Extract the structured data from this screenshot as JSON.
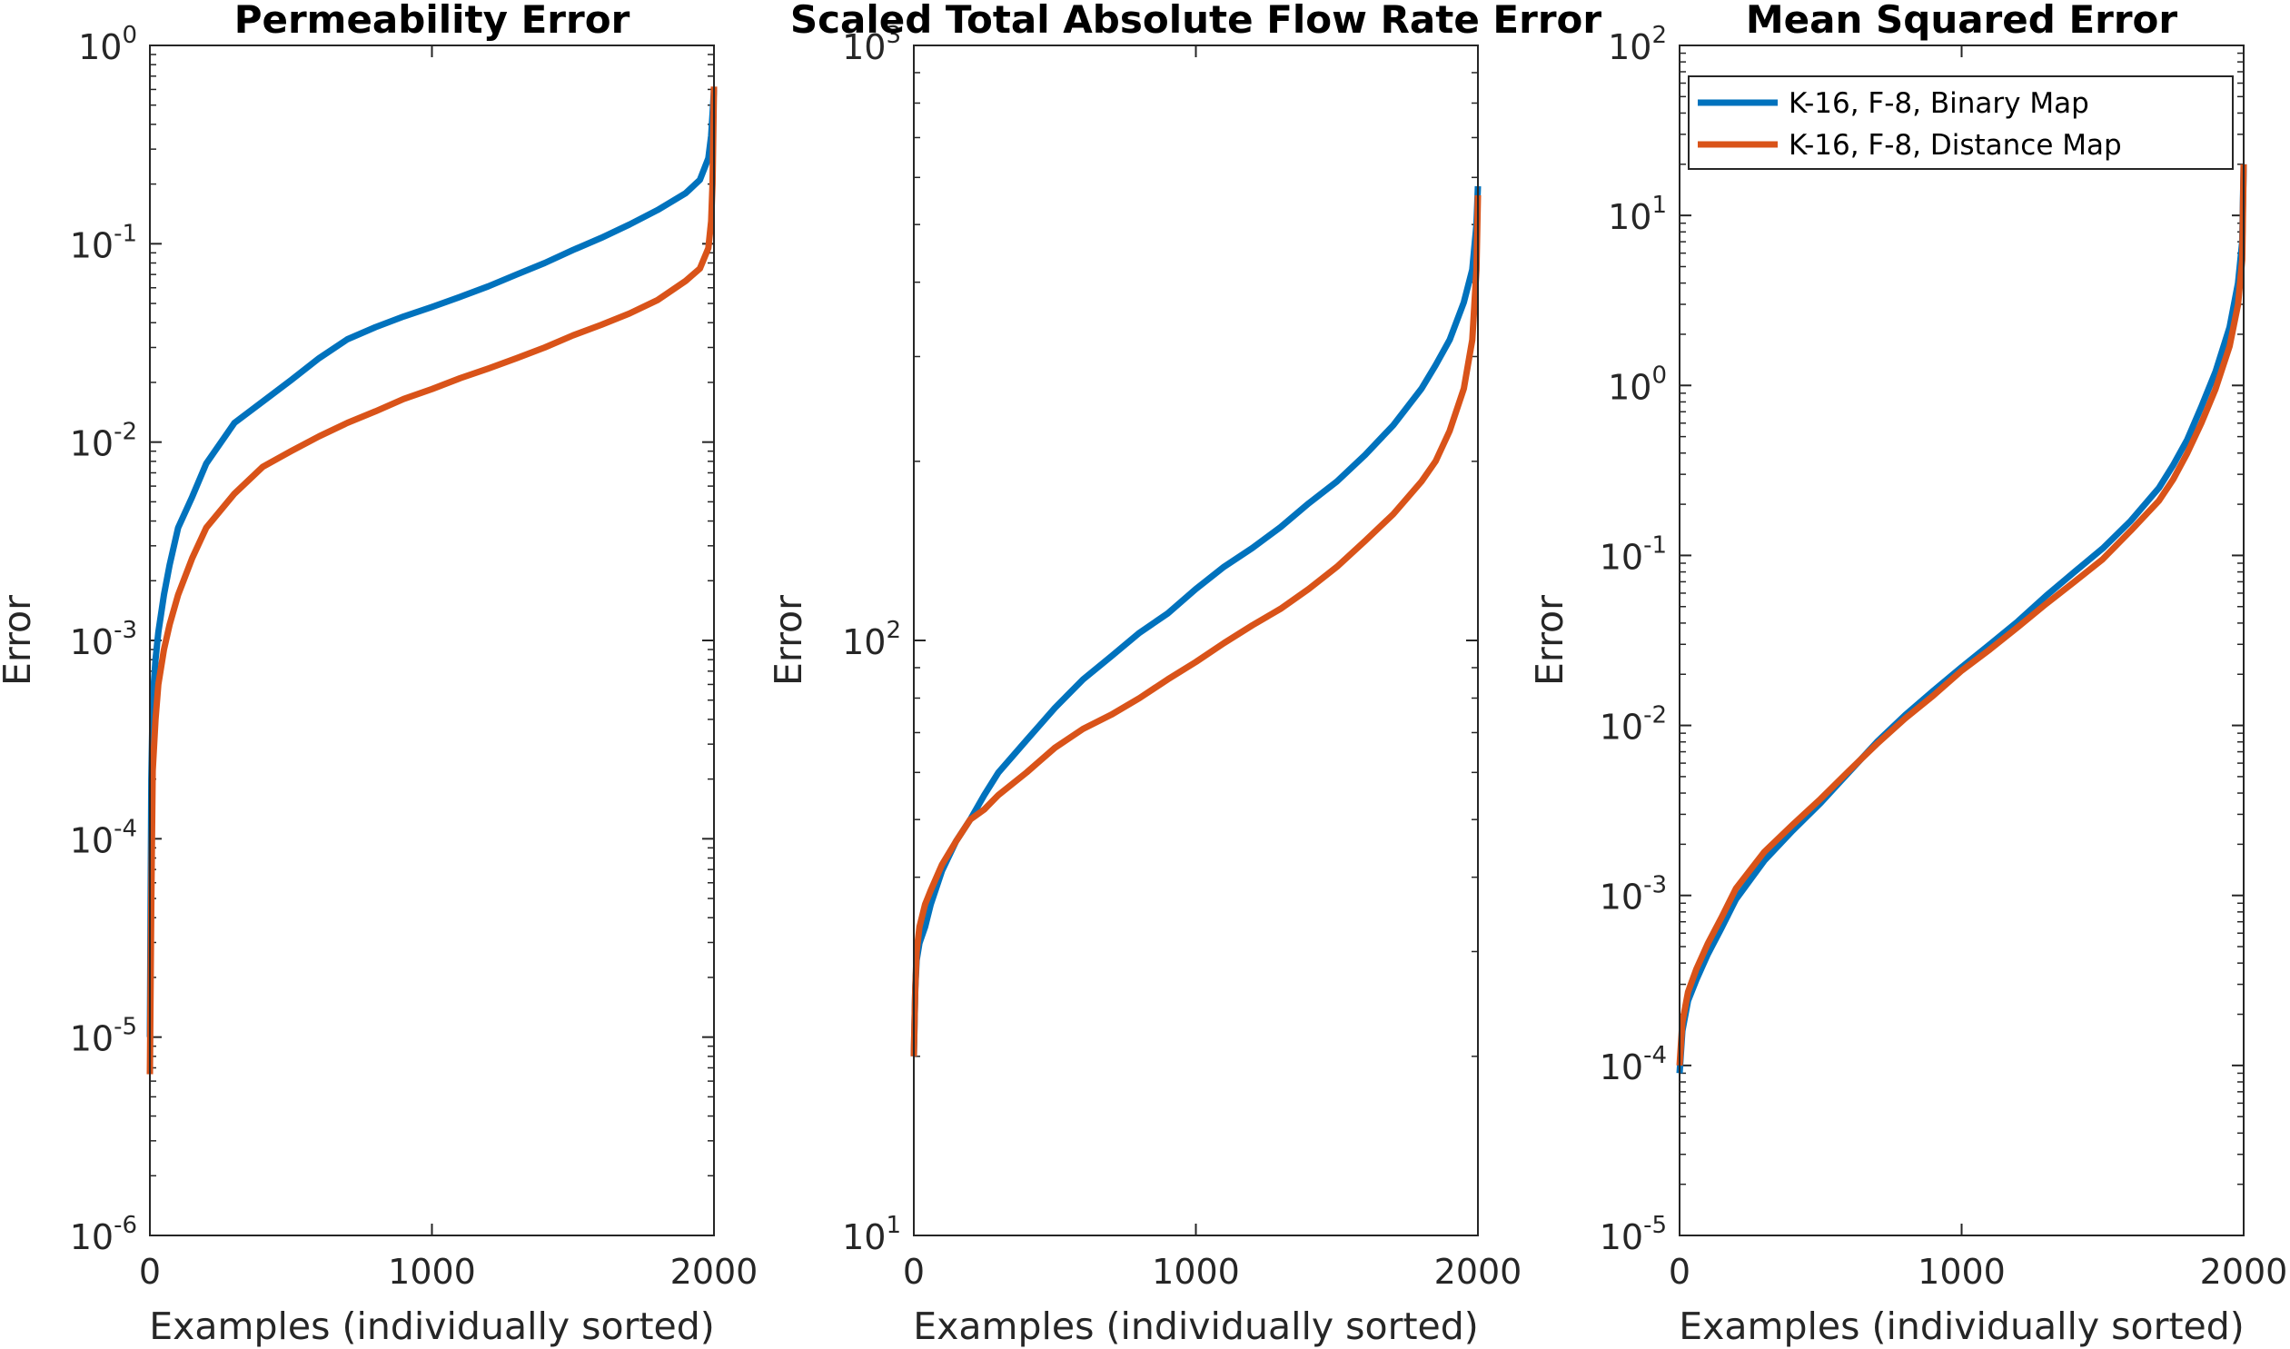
{
  "chart_data": [
    {
      "type": "line",
      "title": "Permeability Error",
      "xlabel": "Examples (individually sorted)",
      "ylabel": "Error",
      "yscale": "log",
      "xlim": [
        0,
        2000
      ],
      "ylim": [
        1e-06,
        1
      ],
      "xticks": [
        "0",
        "1000",
        "2000"
      ],
      "yticks": [
        {
          "base": "10",
          "exp": "-6"
        },
        {
          "base": "10",
          "exp": "-5"
        },
        {
          "base": "10",
          "exp": "-4"
        },
        {
          "base": "10",
          "exp": "-3"
        },
        {
          "base": "10",
          "exp": "-2"
        },
        {
          "base": "10",
          "exp": "-1"
        },
        {
          "base": "10",
          "exp": "0"
        }
      ],
      "series": [
        {
          "x": [
            0,
            5,
            10,
            20,
            30,
            50,
            70,
            100,
            150,
            200,
            300,
            400,
            500,
            600,
            700,
            800,
            900,
            1000,
            1100,
            1200,
            1300,
            1400,
            1500,
            1600,
            1700,
            1800,
            1900,
            1950,
            1980,
            1990,
            1995,
            2000
          ],
          "y": [
            1e-05,
            0.0002,
            0.0005,
            0.0008,
            0.0011,
            0.0017,
            0.0024,
            0.0037,
            0.0053,
            0.0078,
            0.0125,
            0.016,
            0.0205,
            0.0265,
            0.033,
            0.038,
            0.043,
            0.048,
            0.054,
            0.061,
            0.07,
            0.08,
            0.093,
            0.107,
            0.125,
            0.148,
            0.18,
            0.21,
            0.27,
            0.35,
            0.45,
            0.6
          ]
        },
        {
          "x": [
            0,
            5,
            10,
            20,
            30,
            50,
            70,
            100,
            150,
            200,
            300,
            400,
            500,
            600,
            700,
            800,
            900,
            1000,
            1100,
            1200,
            1300,
            1400,
            1500,
            1600,
            1700,
            1800,
            1900,
            1950,
            1980,
            1990,
            1995,
            2000
          ],
          "y": [
            6.5e-06,
            5e-05,
            0.00022,
            0.0004,
            0.0006,
            0.0009,
            0.0012,
            0.0017,
            0.0026,
            0.0037,
            0.0055,
            0.0075,
            0.009,
            0.0107,
            0.0125,
            0.0143,
            0.0165,
            0.0185,
            0.021,
            0.0235,
            0.0265,
            0.03,
            0.0345,
            0.039,
            0.0445,
            0.052,
            0.065,
            0.075,
            0.095,
            0.13,
            0.2,
            0.62
          ]
        }
      ]
    },
    {
      "type": "line",
      "title": "Scaled Total Absolute Flow Rate Error",
      "xlabel": "Examples (individually sorted)",
      "ylabel": "Error",
      "yscale": "log",
      "xlim": [
        0,
        2000
      ],
      "ylim": [
        10,
        1000
      ],
      "xticks": [
        "0",
        "1000",
        "2000"
      ],
      "yticks": [
        {
          "base": "10",
          "exp": "1"
        },
        {
          "base": "10",
          "exp": "2"
        },
        {
          "base": "10",
          "exp": "3"
        }
      ],
      "series": [
        {
          "x": [
            0,
            5,
            10,
            20,
            40,
            60,
            100,
            150,
            200,
            250,
            300,
            400,
            500,
            600,
            700,
            800,
            900,
            1000,
            1100,
            1200,
            1300,
            1400,
            1500,
            1600,
            1700,
            1800,
            1850,
            1900,
            1950,
            1980,
            1995,
            2000
          ],
          "y": [
            20,
            26,
            29,
            31,
            33,
            36,
            41,
            46,
            50,
            55,
            60,
            68,
            77,
            86,
            94,
            103,
            111,
            122,
            133,
            143,
            155,
            170,
            185,
            205,
            230,
            265,
            290,
            320,
            370,
            420,
            500,
            580
          ]
        },
        {
          "x": [
            0,
            5,
            10,
            20,
            40,
            60,
            100,
            150,
            200,
            250,
            300,
            400,
            500,
            600,
            700,
            800,
            900,
            1000,
            1100,
            1200,
            1300,
            1400,
            1500,
            1600,
            1700,
            1800,
            1850,
            1900,
            1950,
            1980,
            1995,
            2000
          ],
          "y": [
            20,
            26,
            30,
            33,
            36,
            38,
            42,
            46,
            50,
            52,
            55,
            60,
            66,
            71,
            75,
            80,
            86,
            92,
            99,
            106,
            113,
            122,
            133,
            147,
            163,
            185,
            200,
            225,
            265,
            320,
            420,
            560
          ]
        }
      ]
    },
    {
      "type": "line",
      "title": "Mean Squared Error",
      "xlabel": "Examples (individually sorted)",
      "ylabel": "Error",
      "yscale": "log",
      "xlim": [
        0,
        2000
      ],
      "ylim": [
        1e-05,
        100
      ],
      "xticks": [
        "0",
        "1000",
        "2000"
      ],
      "yticks": [
        {
          "base": "10",
          "exp": "-5"
        },
        {
          "base": "10",
          "exp": "-4"
        },
        {
          "base": "10",
          "exp": "-3"
        },
        {
          "base": "10",
          "exp": "-2"
        },
        {
          "base": "10",
          "exp": "-1"
        },
        {
          "base": "10",
          "exp": "0"
        },
        {
          "base": "10",
          "exp": "1"
        },
        {
          "base": "10",
          "exp": "2"
        }
      ],
      "legend": {
        "placement": "top-right"
      },
      "series": [
        {
          "name": "K-16, F-8, Binary Map",
          "x": [
            0,
            10,
            30,
            60,
            100,
            150,
            200,
            300,
            400,
            500,
            600,
            700,
            800,
            900,
            1000,
            1100,
            1200,
            1300,
            1400,
            1500,
            1600,
            1700,
            1750,
            1800,
            1850,
            1900,
            1950,
            1980,
            1995,
            2000
          ],
          "y": [
            9e-05,
            0.00016,
            0.00024,
            0.00032,
            0.00045,
            0.00065,
            0.00095,
            0.0016,
            0.0024,
            0.0035,
            0.0053,
            0.008,
            0.0115,
            0.016,
            0.022,
            0.03,
            0.041,
            0.058,
            0.08,
            0.11,
            0.16,
            0.25,
            0.34,
            0.48,
            0.75,
            1.2,
            2.2,
            4,
            7,
            20
          ]
        },
        {
          "name": "K-16, F-8, Distance Map",
          "x": [
            0,
            10,
            30,
            60,
            100,
            150,
            200,
            300,
            400,
            500,
            600,
            700,
            800,
            900,
            1000,
            1100,
            1200,
            1300,
            1400,
            1500,
            1600,
            1700,
            1750,
            1800,
            1850,
            1900,
            1950,
            1980,
            1995,
            2000
          ],
          "y": [
            0.0001,
            0.00018,
            0.00027,
            0.00037,
            0.00052,
            0.00075,
            0.0011,
            0.0018,
            0.0026,
            0.0037,
            0.0054,
            0.0078,
            0.011,
            0.015,
            0.021,
            0.028,
            0.038,
            0.052,
            0.07,
            0.095,
            0.14,
            0.21,
            0.28,
            0.4,
            0.6,
            0.95,
            1.7,
            3,
            5.5,
            20
          ]
        }
      ]
    }
  ],
  "colors": {
    "series1": "#0072BD",
    "series2": "#D95319"
  }
}
